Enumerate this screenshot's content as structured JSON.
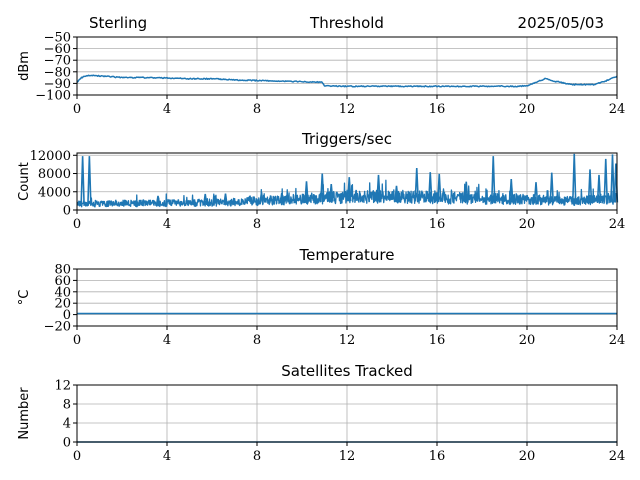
{
  "header": {
    "station": "Sterling",
    "date": "2025/05/03"
  },
  "colors": {
    "line": "#1f77b4",
    "grid": "#b0b0b0",
    "axis": "#000000"
  },
  "chart_data": [
    {
      "type": "line",
      "title": "Threshold",
      "ylabel": "dBm",
      "xlim": [
        0,
        24
      ],
      "ylim": [
        -100,
        -50
      ],
      "xticks": [
        0,
        4,
        8,
        12,
        16,
        20,
        24
      ],
      "yticks": [
        -100,
        -90,
        -80,
        -70,
        -60,
        -50
      ],
      "ytick_labels": [
        "−100",
        "−90",
        "−80",
        "−70",
        "−60",
        "−50"
      ],
      "grid": true,
      "x": [
        0,
        0.2,
        0.5,
        1,
        2,
        3,
        4,
        5,
        6,
        7,
        8,
        9,
        10,
        10.9,
        11,
        12,
        14,
        16,
        18,
        19.5,
        20,
        20.4,
        20.8,
        21.2,
        22,
        23,
        23.5,
        23.8,
        24
      ],
      "values": [
        -89,
        -85,
        -83,
        -83.5,
        -85,
        -85,
        -85.3,
        -86,
        -86,
        -87,
        -87.5,
        -88,
        -88.5,
        -89,
        -92,
        -92.5,
        -92.5,
        -92.5,
        -92.5,
        -92.5,
        -92,
        -89,
        -86,
        -88,
        -91,
        -91,
        -88,
        -85,
        -84
      ]
    },
    {
      "type": "line",
      "title": "Triggers/sec",
      "ylabel": "Count",
      "xlim": [
        0,
        24
      ],
      "ylim": [
        0,
        12500
      ],
      "xticks": [
        0,
        4,
        8,
        12,
        16,
        20,
        24
      ],
      "yticks": [
        0,
        4000,
        8000,
        12000
      ],
      "ytick_labels": [
        "0",
        "4000",
        "8000",
        "12000"
      ],
      "grid": true,
      "base": [
        [
          0,
          1500
        ],
        [
          4,
          1700
        ],
        [
          7,
          1900
        ],
        [
          8,
          2200
        ],
        [
          10,
          2600
        ],
        [
          11,
          3000
        ],
        [
          12,
          3200
        ],
        [
          14,
          3300
        ],
        [
          16,
          3000
        ],
        [
          18,
          2800
        ],
        [
          20,
          2600
        ],
        [
          22,
          2200
        ],
        [
          23,
          2500
        ],
        [
          24,
          2800
        ]
      ],
      "spikes": [
        [
          0.25,
          11800
        ],
        [
          0.55,
          11800
        ],
        [
          3.6,
          3100
        ],
        [
          5.7,
          3500
        ],
        [
          6.6,
          3600
        ],
        [
          8.2,
          3900
        ],
        [
          9.1,
          3700
        ],
        [
          10.2,
          6300
        ],
        [
          10.9,
          8000
        ],
        [
          11.3,
          5700
        ],
        [
          12.1,
          7200
        ],
        [
          13.4,
          7700
        ],
        [
          14.2,
          5300
        ],
        [
          15.1,
          9200
        ],
        [
          15.7,
          8300
        ],
        [
          16.1,
          7900
        ],
        [
          17.3,
          6200
        ],
        [
          18.5,
          11800
        ],
        [
          19.3,
          6800
        ],
        [
          20.4,
          6100
        ],
        [
          21.1,
          8200
        ],
        [
          22.1,
          12300
        ],
        [
          22.8,
          8900
        ],
        [
          23.2,
          7700
        ],
        [
          23.5,
          11200
        ],
        [
          23.8,
          12200
        ],
        [
          23.95,
          10200
        ]
      ]
    },
    {
      "type": "line",
      "title": "Temperature",
      "ylabel": "°C",
      "xlim": [
        0,
        24
      ],
      "ylim": [
        -20,
        80
      ],
      "xticks": [
        0,
        4,
        8,
        12,
        16,
        20,
        24
      ],
      "yticks": [
        -20,
        0,
        20,
        40,
        60,
        80
      ],
      "ytick_labels": [
        "−20",
        "0",
        "20",
        "40",
        "60",
        "80"
      ],
      "grid": true,
      "x": [
        0,
        24
      ],
      "values": [
        2,
        2
      ]
    },
    {
      "type": "line",
      "title": "Satellites Tracked",
      "ylabel": "Number",
      "xlim": [
        0,
        24
      ],
      "ylim": [
        0,
        12
      ],
      "xticks": [
        0,
        4,
        8,
        12,
        16,
        20,
        24
      ],
      "yticks": [
        0,
        4,
        8,
        12
      ],
      "ytick_labels": [
        "0",
        "4",
        "8",
        "12"
      ],
      "grid": true,
      "x": [
        0,
        24
      ],
      "values": [
        0,
        0
      ]
    }
  ]
}
